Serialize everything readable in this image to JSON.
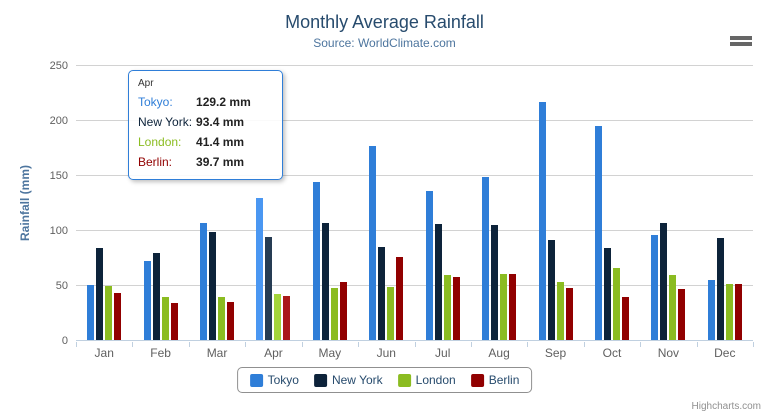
{
  "header": {
    "title": "Monthly Average Rainfall",
    "subtitle": "Source: WorldClimate.com"
  },
  "credit": "Highcharts.com",
  "chart_data": {
    "type": "bar",
    "title": "Monthly Average Rainfall",
    "subtitle": "Source: WorldClimate.com",
    "categories": [
      "Jan",
      "Feb",
      "Mar",
      "Apr",
      "May",
      "Jun",
      "Jul",
      "Aug",
      "Sep",
      "Oct",
      "Nov",
      "Dec"
    ],
    "series": [
      {
        "name": "Tokyo",
        "color": "#2f7ed8",
        "hover_color": "#4a97f2",
        "values": [
          49.9,
          71.5,
          106.4,
          129.2,
          144.0,
          176.0,
          135.6,
          148.5,
          216.4,
          194.1,
          95.6,
          54.4
        ]
      },
      {
        "name": "New York",
        "color": "#0d233a",
        "hover_color": "#263c53",
        "values": [
          83.6,
          78.8,
          98.5,
          93.4,
          106.0,
          84.5,
          105.0,
          104.3,
          91.2,
          83.5,
          106.6,
          92.3
        ]
      },
      {
        "name": "London",
        "color": "#8bbc21",
        "hover_color": "#a4d53a",
        "values": [
          48.9,
          38.8,
          39.3,
          41.4,
          47.0,
          48.3,
          59.0,
          59.6,
          52.4,
          65.2,
          59.3,
          51.2
        ]
      },
      {
        "name": "Berlin",
        "color": "#910000",
        "hover_color": "#aa1919",
        "values": [
          42.4,
          33.2,
          34.5,
          39.7,
          52.6,
          75.5,
          57.4,
          60.4,
          47.6,
          39.1,
          46.8,
          51.1
        ]
      }
    ],
    "xlabel": "",
    "ylabel": "Rainfall (mm)",
    "ylim": [
      0,
      250
    ],
    "yticks": [
      0,
      50,
      100,
      150,
      200,
      250
    ],
    "grid": true,
    "legend_position": "bottom-center",
    "hovered_category_index": 3,
    "value_suffix": "mm"
  },
  "tooltip": {
    "header": "Apr",
    "border_color": "#2f7ed8",
    "rows": [
      {
        "label": "Tokyo:",
        "value": "129.2 mm",
        "color": "#2f7ed8"
      },
      {
        "label": "New York:",
        "value": "93.4 mm",
        "color": "#0d233a"
      },
      {
        "label": "London:",
        "value": "41.4 mm",
        "color": "#8bbc21"
      },
      {
        "label": "Berlin:",
        "value": "39.7 mm",
        "color": "#910000"
      }
    ]
  },
  "legend": {
    "items": [
      {
        "label": "Tokyo",
        "color": "#2f7ed8"
      },
      {
        "label": "New York",
        "color": "#0d233a"
      },
      {
        "label": "London",
        "color": "#8bbc21"
      },
      {
        "label": "Berlin",
        "color": "#910000"
      }
    ]
  },
  "colors": {
    "title": "#274b6d",
    "subtitle": "#4d759e",
    "axis_labels": "#606060",
    "gridline": "#d2d2d2",
    "axis_line": "#c0d0e0",
    "legend_border": "#909090",
    "export_icon": "#666666",
    "credit": "#909090"
  }
}
